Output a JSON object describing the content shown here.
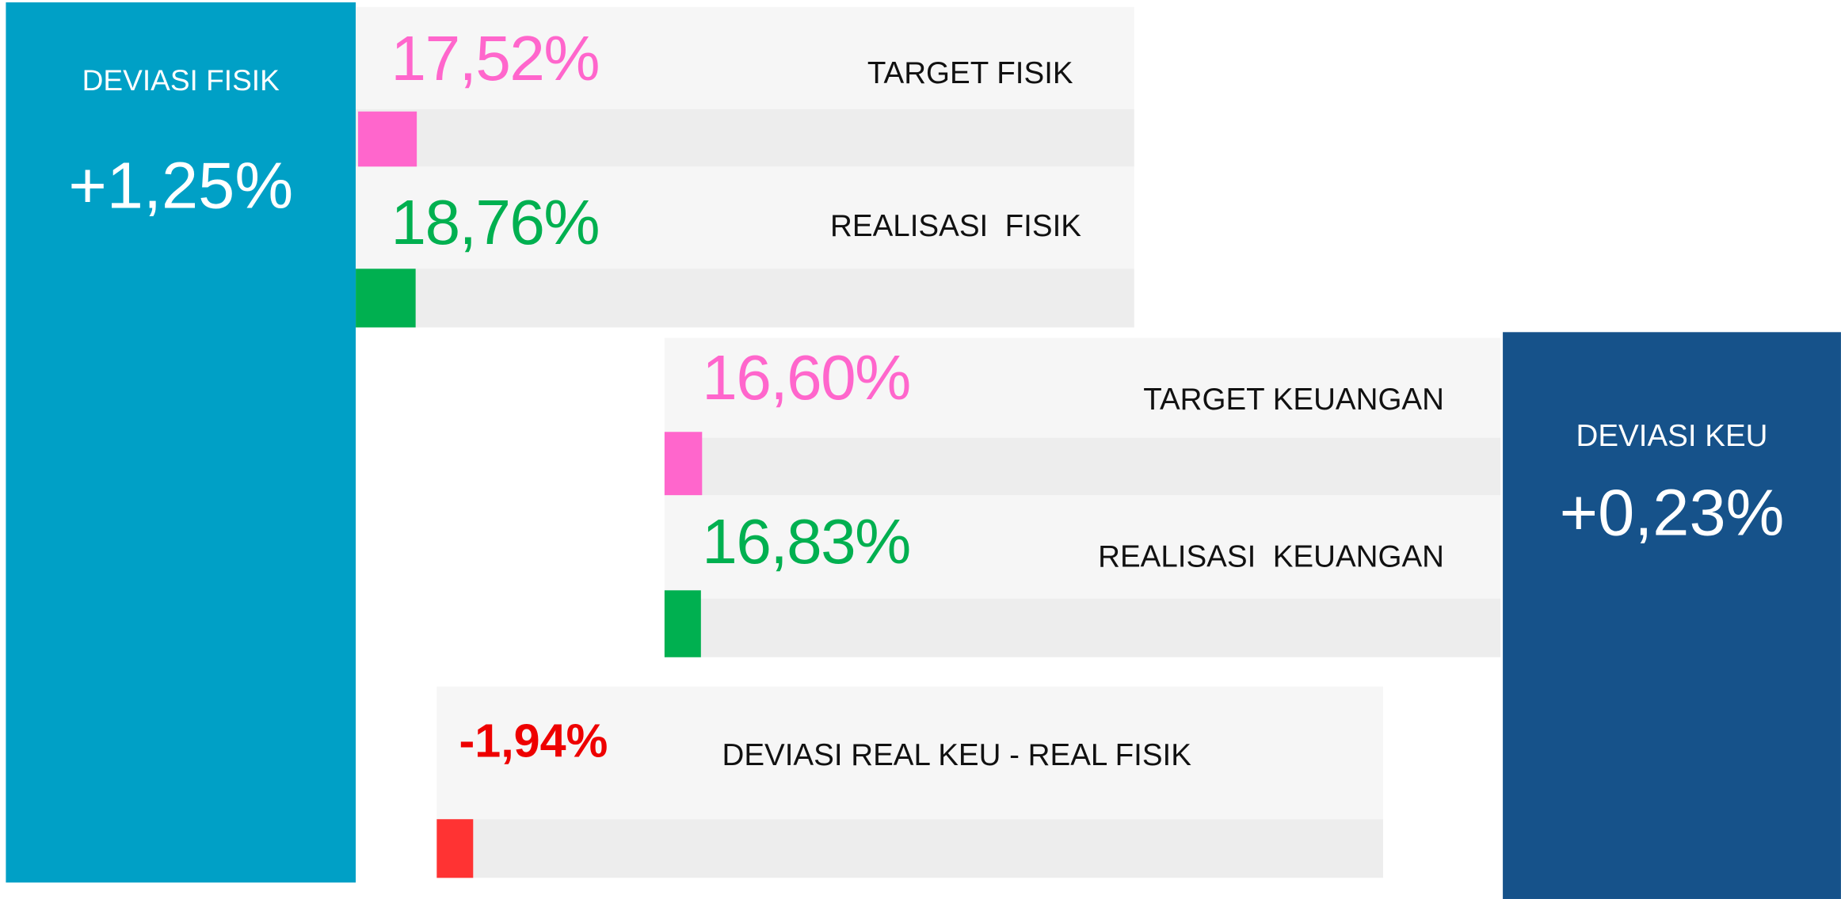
{
  "deviasi_fisik": {
    "label": "DEVIASI FISIK",
    "value": "+1,25%"
  },
  "deviasi_keu": {
    "label": "DEVIASI KEU",
    "value": "+0,23%"
  },
  "rows": [
    {
      "value": "17,52%",
      "label": "TARGET FISIK"
    },
    {
      "value": "18,76%",
      "label": "REALISASI  FISIK"
    },
    {
      "value": "16,60%",
      "label": "TARGET KEUANGAN"
    },
    {
      "value": "16,83%",
      "label": "REALISASI  KEUANGAN"
    },
    {
      "value": "-1,94%",
      "label": "DEVIASI REAL KEU - REAL FISIK"
    }
  ]
}
